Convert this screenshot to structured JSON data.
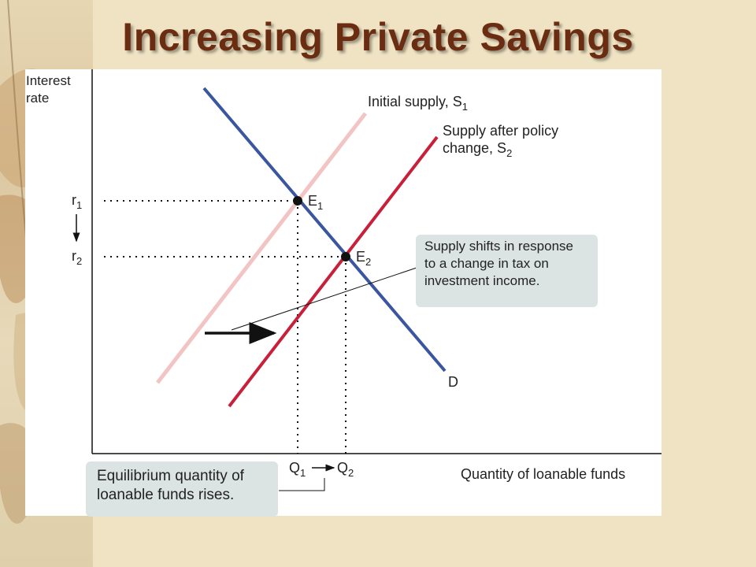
{
  "slide": {
    "title": "Increasing Private Savings"
  },
  "diagram": {
    "y_axis_label": [
      "Interest",
      "rate"
    ],
    "x_axis_label": "Quantity of loanable funds",
    "curves": {
      "s1": {
        "label": "Initial supply, S",
        "subscript": "1",
        "color": "#f2c4c4"
      },
      "s2": {
        "label_lines": [
          "Supply after policy",
          "change, S"
        ],
        "subscript": "2",
        "color": "#c8203a"
      },
      "d": {
        "label": "D",
        "color": "#3a56a0"
      }
    },
    "equilibria": [
      {
        "label": "E",
        "subscript": "1"
      },
      {
        "label": "E",
        "subscript": "2"
      }
    ],
    "rates": [
      {
        "label": "r",
        "subscript": "1"
      },
      {
        "label": "r",
        "subscript": "2"
      }
    ],
    "quantities": [
      {
        "label": "Q",
        "subscript": "1"
      },
      {
        "label": "Q",
        "subscript": "2"
      }
    ],
    "callout_shift": [
      "Supply shifts in response",
      "to a change in tax on",
      "investment income."
    ],
    "callout_quantity": [
      "Equilibrium quantity of",
      "loanable funds rises."
    ]
  }
}
